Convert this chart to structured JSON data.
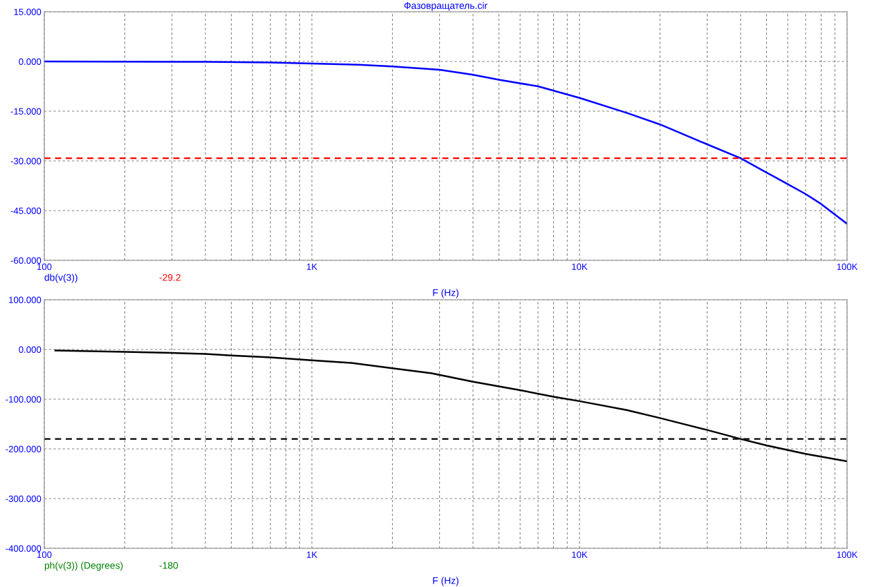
{
  "chart_data": [
    {
      "type": "line",
      "title": "Фазовращатель.cir",
      "xlabel": "F (Hz)",
      "log": "x",
      "grid": true,
      "line_style": "solid",
      "marker": "none",
      "xlim": [
        100,
        100000
      ],
      "xticks": [
        {
          "value": 100,
          "label": "100"
        },
        {
          "value": 1000,
          "label": "1K"
        },
        {
          "value": 10000,
          "label": "10K"
        },
        {
          "value": 100000,
          "label": "100K"
        }
      ],
      "ylim": [
        -60,
        15
      ],
      "yticks": [
        {
          "value": -60,
          "label": "-60.000"
        },
        {
          "value": -45,
          "label": "-45.000"
        },
        {
          "value": -30,
          "label": "-30.000"
        },
        {
          "value": -15,
          "label": "-15.000"
        },
        {
          "value": 0,
          "label": "0.000"
        },
        {
          "value": 15,
          "label": "15.000"
        }
      ],
      "x": [
        100,
        400,
        700,
        1000,
        1500,
        2000,
        3000,
        4000,
        5000,
        7000,
        10000,
        15000,
        20000,
        30000,
        40000,
        50000,
        60000,
        70000,
        80000,
        100000
      ],
      "series": [
        {
          "color": "#0000ff",
          "values": [
            0,
            -0.1,
            -0.3,
            -0.6,
            -1.0,
            -1.5,
            -2.5,
            -4,
            -5.5,
            -7.5,
            -11,
            -15.5,
            -19,
            -25,
            -29.2,
            -33.5,
            -37,
            -40,
            -43,
            -49
          ]
        }
      ],
      "ref_lines": [
        {
          "axis": "y",
          "value": -29.2,
          "color": "#ff0000",
          "line_style": "dashed"
        }
      ],
      "annotations": [
        "db(v(3))",
        "-29.2"
      ]
    },
    {
      "type": "line",
      "xlabel": "F (Hz)",
      "log": "x",
      "grid": true,
      "line_style": "solid",
      "marker": "none",
      "xlim": [
        100,
        100000
      ],
      "xticks": [
        {
          "value": 100,
          "label": "100"
        },
        {
          "value": 1000,
          "label": "1K"
        },
        {
          "value": 10000,
          "label": "10K"
        },
        {
          "value": 100000,
          "label": "100K"
        }
      ],
      "ylim": [
        -400,
        100
      ],
      "yticks": [
        {
          "value": -400,
          "label": "-400.000"
        },
        {
          "value": -300,
          "label": "-300.000"
        },
        {
          "value": -200,
          "label": "-200.000"
        },
        {
          "value": -100,
          "label": "-100.000"
        },
        {
          "value": 0,
          "label": "0.000"
        },
        {
          "value": 100,
          "label": "100.000"
        }
      ],
      "x": [
        110,
        200,
        300,
        400,
        500,
        700,
        1000,
        1400,
        2000,
        2800,
        4000,
        6000,
        8000,
        10000,
        15000,
        20000,
        30000,
        40000,
        50000,
        70000,
        100000
      ],
      "series": [
        {
          "color": "#000000",
          "values": [
            -2,
            -5,
            -7,
            -9,
            -12,
            -16,
            -22,
            -27,
            -38,
            -48,
            -65,
            -82,
            -95,
            -104,
            -122,
            -138,
            -162,
            -180,
            -193,
            -210,
            -225
          ]
        }
      ],
      "ref_lines": [
        {
          "axis": "y",
          "value": -180,
          "color": "#000000",
          "line_style": "dashed"
        }
      ],
      "annotations": [
        "ph(v(3)) (Degrees)",
        "-180"
      ]
    }
  ]
}
